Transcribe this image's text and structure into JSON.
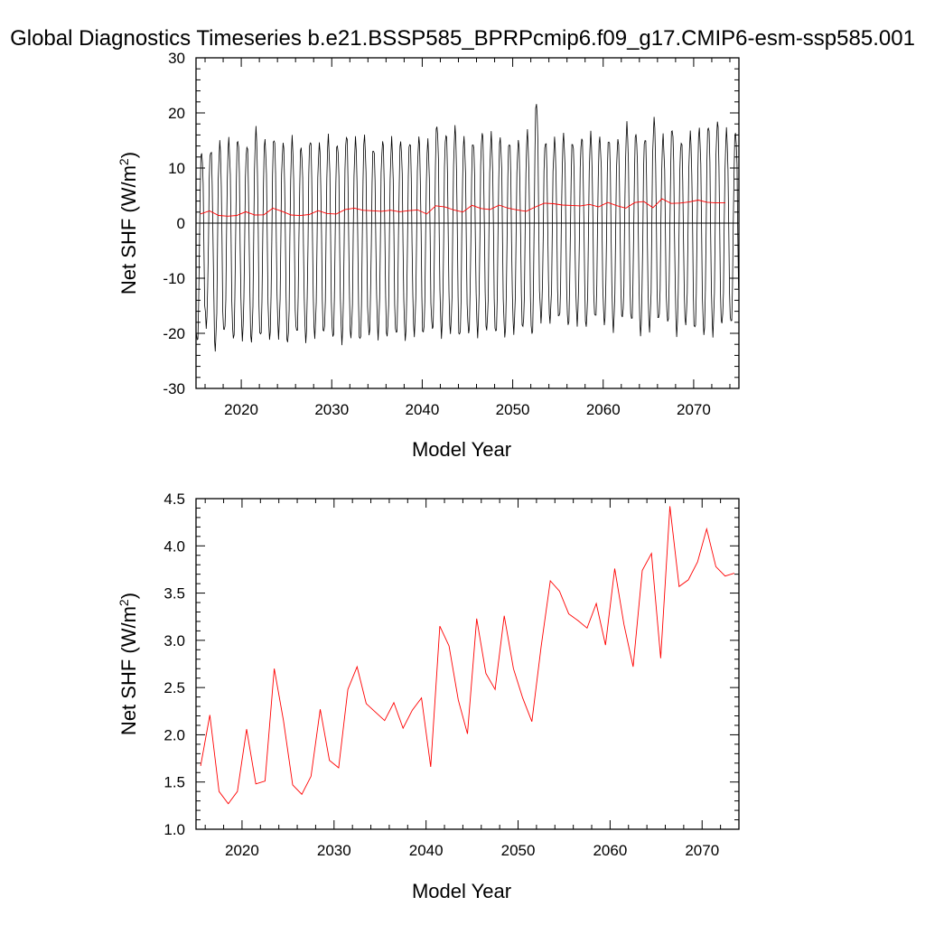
{
  "title": "Global Diagnostics Timeseries b.e21.BSSP585_BPRPcmip6.f09_g17.CMIP6-esm-ssp585.001",
  "chart_data": [
    {
      "type": "line",
      "xlabel": "Model Year",
      "ylabel": "Net SHF (W/m²)",
      "ylabel_main": "Net SHF (W/m",
      "ylabel_sup": "2",
      "ylabel_close": ")",
      "xlim": [
        2015,
        2075
      ],
      "ylim": [
        -30,
        30
      ],
      "xticks": [
        2020,
        2030,
        2040,
        2050,
        2060,
        2070
      ],
      "yticks": [
        30,
        20,
        10,
        0,
        -10,
        -20,
        -30
      ],
      "zero_line": true,
      "grid": false,
      "monthly_series": {
        "color": "#000000",
        "start_year": 2015,
        "summer_peaks": [
          13.0,
          13.5,
          14.5,
          15.0,
          15.5,
          14.2,
          16.8,
          15.0,
          15.8,
          14.6,
          15.1,
          13.9,
          15.4,
          14.2,
          15.5,
          14.6,
          16.1,
          15.0,
          15.7,
          13.9,
          15.0,
          14.9,
          14.9,
          15.1,
          15.4,
          14.6,
          18.0,
          16.5,
          17.1,
          15.3,
          15.0,
          16.6,
          15.8,
          15.5,
          15.1,
          14.9,
          16.2,
          22.0,
          15.1,
          15.1,
          15.8,
          15.0,
          15.7,
          15.9,
          15.5,
          15.6,
          15.2,
          17.6,
          16.4,
          15.8,
          18.8,
          15.6,
          17.4,
          15.0,
          16.0,
          17.0,
          18.1,
          18.5,
          16.5,
          16.5
        ],
        "winter_troughs": [
          -21.8,
          -18.5,
          -22.8,
          -20.1,
          -21.2,
          -20.6,
          -21.6,
          -21.0,
          -21.0,
          -20.3,
          -22.0,
          -20.2,
          -21.2,
          -20.4,
          -20.3,
          -21.0,
          -21.3,
          -20.7,
          -21.8,
          -20.3,
          -20.4,
          -20.8,
          -20.6,
          -20.9,
          -20.0,
          -20.4,
          -19.7,
          -20.2,
          -19.8,
          -21.0,
          -20.1,
          -20.0,
          -19.6,
          -20.4,
          -20.4,
          -19.5,
          -19.3,
          -20.7,
          -17.5,
          -17.8,
          -17.6,
          -18.7,
          -17.9,
          -18.8,
          -17.6,
          -18.3,
          -19.1,
          -17.5,
          -18.0,
          -19.9,
          -19.3,
          -17.9,
          -18.2,
          -19.8,
          -18.4,
          -19.7,
          -20.2,
          -19.9,
          -18.5,
          -18.5
        ]
      },
      "series": [
        {
          "color": "#ff0000",
          "x": [
            2015.5,
            2016.5,
            2017.5,
            2018.5,
            2019.5,
            2020.5,
            2021.5,
            2022.5,
            2023.5,
            2024.5,
            2025.5,
            2026.5,
            2027.5,
            2028.5,
            2029.5,
            2030.5,
            2031.5,
            2032.5,
            2033.5,
            2034.5,
            2035.5,
            2036.5,
            2037.5,
            2038.5,
            2039.5,
            2040.5,
            2041.5,
            2042.5,
            2043.5,
            2044.5,
            2045.5,
            2046.5,
            2047.5,
            2048.5,
            2049.5,
            2050.5,
            2051.5,
            2052.5,
            2053.5,
            2054.5,
            2055.5,
            2056.5,
            2057.5,
            2058.5,
            2059.5,
            2060.5,
            2061.5,
            2062.5,
            2063.5,
            2064.5,
            2065.5,
            2066.5,
            2067.5,
            2068.5,
            2069.5,
            2070.5,
            2071.5,
            2072.5,
            2073.5
          ],
          "values": [
            1.67,
            2.21,
            1.4,
            1.27,
            1.4,
            2.06,
            1.48,
            1.51,
            2.7,
            2.15,
            1.47,
            1.37,
            1.56,
            2.27,
            1.73,
            1.65,
            2.48,
            2.72,
            2.33,
            2.24,
            2.15,
            2.34,
            2.07,
            2.26,
            2.39,
            1.66,
            3.15,
            2.94,
            2.37,
            2.01,
            3.23,
            2.65,
            2.48,
            3.26,
            2.7,
            2.39,
            2.14,
            2.93,
            3.63,
            3.52,
            3.28,
            3.21,
            3.13,
            3.39,
            2.95,
            3.76,
            3.17,
            2.72,
            3.74,
            3.92,
            2.81,
            4.42,
            3.57,
            3.64,
            3.83,
            4.18,
            3.78,
            3.68,
            3.71
          ]
        }
      ]
    },
    {
      "type": "line",
      "xlabel": "Model Year",
      "ylabel": "Net SHF (W/m²)",
      "ylabel_main": "Net SHF (W/m",
      "ylabel_sup": "2",
      "ylabel_close": ")",
      "xlim": [
        2015,
        2074
      ],
      "ylim": [
        1.0,
        4.5
      ],
      "xticks": [
        2020,
        2030,
        2040,
        2050,
        2060,
        2070
      ],
      "yticks": [
        4.5,
        4.0,
        3.5,
        3.0,
        2.5,
        2.0,
        1.5,
        1.0
      ],
      "ytick_labels": [
        "4.5",
        "4.0",
        "3.5",
        "3.0",
        "2.5",
        "2.0",
        "1.5",
        "1.0"
      ],
      "grid": false,
      "series": [
        {
          "color": "#ff0000",
          "x": [
            2015.5,
            2016.5,
            2017.5,
            2018.5,
            2019.5,
            2020.5,
            2021.5,
            2022.5,
            2023.5,
            2024.5,
            2025.5,
            2026.5,
            2027.5,
            2028.5,
            2029.5,
            2030.5,
            2031.5,
            2032.5,
            2033.5,
            2034.5,
            2035.5,
            2036.5,
            2037.5,
            2038.5,
            2039.5,
            2040.5,
            2041.5,
            2042.5,
            2043.5,
            2044.5,
            2045.5,
            2046.5,
            2047.5,
            2048.5,
            2049.5,
            2050.5,
            2051.5,
            2052.5,
            2053.5,
            2054.5,
            2055.5,
            2056.5,
            2057.5,
            2058.5,
            2059.5,
            2060.5,
            2061.5,
            2062.5,
            2063.5,
            2064.5,
            2065.5,
            2066.5,
            2067.5,
            2068.5,
            2069.5,
            2070.5,
            2071.5,
            2072.5,
            2073.5
          ],
          "values": [
            1.67,
            2.21,
            1.4,
            1.27,
            1.4,
            2.06,
            1.48,
            1.51,
            2.7,
            2.15,
            1.47,
            1.37,
            1.56,
            2.27,
            1.73,
            1.65,
            2.48,
            2.72,
            2.33,
            2.24,
            2.15,
            2.34,
            2.07,
            2.26,
            2.39,
            1.66,
            3.15,
            2.94,
            2.37,
            2.01,
            3.23,
            2.65,
            2.48,
            3.26,
            2.7,
            2.39,
            2.14,
            2.93,
            3.63,
            3.52,
            3.28,
            3.21,
            3.13,
            3.39,
            2.95,
            3.76,
            3.17,
            2.72,
            3.74,
            3.92,
            2.81,
            4.42,
            3.57,
            3.64,
            3.83,
            4.18,
            3.78,
            3.68,
            3.71
          ]
        }
      ]
    }
  ]
}
